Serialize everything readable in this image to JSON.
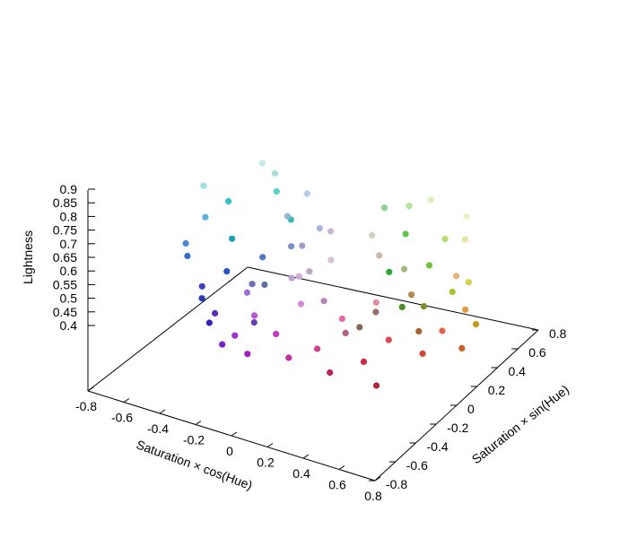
{
  "chart_data": {
    "type": "scatter",
    "projection": "3d",
    "title": "",
    "xlabel": "Saturation × cos(Hue)",
    "ylabel": "Saturation × sin(Hue)",
    "zlabel": "Lightness",
    "xlim": [
      -0.8,
      0.8
    ],
    "ylim": [
      -0.8,
      0.8
    ],
    "zlim": [
      0.4,
      0.9
    ],
    "x_ticks": [
      "-0.8",
      "-0.6",
      "-0.4",
      "-0.2",
      "0",
      "0.2",
      "0.4",
      "0.6",
      "0.8"
    ],
    "y_ticks": [
      "-0.8",
      "-0.6",
      "-0.4",
      "-0.2",
      "0",
      "0.2",
      "0.4",
      "0.6",
      "0.8"
    ],
    "z_ticks": [
      "0.4",
      "0.45",
      "0.5",
      "0.55",
      "0.6",
      "0.65",
      "0.7",
      "0.75",
      "0.8",
      "0.85",
      "0.9"
    ],
    "grid": false,
    "legend": "none",
    "point_color_encoding": "HSL color of each sample",
    "points": [
      {
        "x": -0.7,
        "y": 0.35,
        "z": 0.72,
        "color": "#2ec4c8"
      },
      {
        "x": -0.72,
        "y": 0.15,
        "z": 0.8,
        "color": "#9fdde4"
      },
      {
        "x": -0.6,
        "y": 0.5,
        "z": 0.86,
        "color": "#bfe8ea"
      },
      {
        "x": -0.65,
        "y": 0.3,
        "z": 0.6,
        "color": "#1ea3b5"
      },
      {
        "x": -0.55,
        "y": 0.55,
        "z": 0.76,
        "color": "#56d4c5"
      },
      {
        "x": -0.5,
        "y": 0.6,
        "z": 0.66,
        "color": "#3bb7ad"
      },
      {
        "x": -0.75,
        "y": 0.05,
        "z": 0.55,
        "color": "#2f6fc7"
      },
      {
        "x": -0.7,
        "y": -0.05,
        "z": 0.62,
        "color": "#4a86d6"
      },
      {
        "x": -0.62,
        "y": 0.2,
        "z": 0.5,
        "color": "#2255c0"
      },
      {
        "x": -0.68,
        "y": 0.1,
        "z": 0.7,
        "color": "#5bb0e0"
      },
      {
        "x": -0.58,
        "y": -0.1,
        "z": 0.45,
        "color": "#2a39b5"
      },
      {
        "x": -0.45,
        "y": 0.25,
        "z": 0.58,
        "color": "#4c79c4"
      },
      {
        "x": -0.4,
        "y": 0.4,
        "z": 0.72,
        "color": "#8fb8d8"
      },
      {
        "x": -0.35,
        "y": 0.5,
        "z": 0.8,
        "color": "#b7c8e6"
      },
      {
        "x": -0.5,
        "y": 0.45,
        "z": 0.85,
        "color": "#a9e0da"
      },
      {
        "x": -0.52,
        "y": -0.2,
        "z": 0.52,
        "color": "#3c3fc1"
      },
      {
        "x": -0.42,
        "y": -0.3,
        "z": 0.42,
        "color": "#3b1fb0"
      },
      {
        "x": -0.3,
        "y": -0.45,
        "z": 0.5,
        "color": "#5a2cc2"
      },
      {
        "x": -0.32,
        "y": 0.3,
        "z": 0.64,
        "color": "#7b8fc9"
      },
      {
        "x": -0.25,
        "y": 0.45,
        "z": 0.7,
        "color": "#aab3d8"
      },
      {
        "x": -0.2,
        "y": -0.55,
        "z": 0.42,
        "color": "#7a1fc7"
      },
      {
        "x": -0.1,
        "y": -0.6,
        "z": 0.48,
        "color": "#9a33c9"
      },
      {
        "x": -0.15,
        "y": -0.4,
        "z": 0.6,
        "color": "#9e6fd4"
      },
      {
        "x": -0.05,
        "y": -0.5,
        "z": 0.55,
        "color": "#b55bd0"
      },
      {
        "x": 0.0,
        "y": -0.65,
        "z": 0.44,
        "color": "#a31ec0"
      },
      {
        "x": 0.1,
        "y": -0.55,
        "z": 0.52,
        "color": "#c23bbf"
      },
      {
        "x": 0.15,
        "y": -0.4,
        "z": 0.62,
        "color": "#d785d8"
      },
      {
        "x": 0.05,
        "y": -0.25,
        "z": 0.68,
        "color": "#d2a6dc"
      },
      {
        "x": 0.2,
        "y": -0.6,
        "z": 0.46,
        "color": "#c52a9e"
      },
      {
        "x": 0.3,
        "y": -0.5,
        "z": 0.5,
        "color": "#cf3d8e"
      },
      {
        "x": 0.35,
        "y": -0.35,
        "z": 0.6,
        "color": "#e06aa7"
      },
      {
        "x": 0.4,
        "y": -0.55,
        "z": 0.44,
        "color": "#c41e59"
      },
      {
        "x": 0.5,
        "y": -0.4,
        "z": 0.48,
        "color": "#c92a45"
      },
      {
        "x": 0.55,
        "y": -0.25,
        "z": 0.55,
        "color": "#d8475a"
      },
      {
        "x": 0.6,
        "y": -0.45,
        "z": 0.42,
        "color": "#b8203a"
      },
      {
        "x": 0.45,
        "y": -0.2,
        "z": 0.66,
        "color": "#e58aa0"
      },
      {
        "x": 0.65,
        "y": -0.1,
        "z": 0.5,
        "color": "#cf4a3c"
      },
      {
        "x": 0.7,
        "y": 0.0,
        "z": 0.58,
        "color": "#e0644b"
      },
      {
        "x": 0.72,
        "y": 0.15,
        "z": 0.5,
        "color": "#c9622c"
      },
      {
        "x": 0.68,
        "y": 0.25,
        "z": 0.62,
        "color": "#e09a4a"
      },
      {
        "x": 0.6,
        "y": 0.3,
        "z": 0.72,
        "color": "#e6b27a"
      },
      {
        "x": 0.65,
        "y": 0.4,
        "z": 0.54,
        "color": "#c49a1c"
      },
      {
        "x": 0.55,
        "y": 0.5,
        "z": 0.66,
        "color": "#d8cf4a"
      },
      {
        "x": 0.5,
        "y": 0.55,
        "z": 0.8,
        "color": "#e8e6a6"
      },
      {
        "x": 0.45,
        "y": 0.65,
        "z": 0.86,
        "color": "#eef0c2"
      },
      {
        "x": 0.4,
        "y": 0.6,
        "z": 0.58,
        "color": "#a5c22e"
      },
      {
        "x": 0.3,
        "y": 0.7,
        "z": 0.74,
        "color": "#b9dc6e"
      },
      {
        "x": 0.25,
        "y": 0.65,
        "z": 0.88,
        "color": "#d8efb8"
      },
      {
        "x": 0.2,
        "y": 0.72,
        "z": 0.62,
        "color": "#73c23d"
      },
      {
        "x": 0.1,
        "y": 0.7,
        "z": 0.82,
        "color": "#b4e39e"
      },
      {
        "x": 0.05,
        "y": 0.75,
        "z": 0.7,
        "color": "#5dc44c"
      },
      {
        "x": 0.0,
        "y": 0.68,
        "z": 0.56,
        "color": "#2fa531"
      },
      {
        "x": -0.05,
        "y": 0.72,
        "z": 0.78,
        "color": "#8ad48a"
      },
      {
        "x": 0.15,
        "y": 0.55,
        "z": 0.48,
        "color": "#4e8f2a"
      },
      {
        "x": 0.3,
        "y": 0.5,
        "z": 0.52,
        "color": "#7f8f2c"
      },
      {
        "x": 0.25,
        "y": 0.4,
        "z": 0.66,
        "color": "#a8b87a"
      },
      {
        "x": 0.35,
        "y": 0.3,
        "z": 0.6,
        "color": "#b28a4c"
      },
      {
        "x": 0.45,
        "y": 0.2,
        "z": 0.5,
        "color": "#a2602d"
      },
      {
        "x": 0.2,
        "y": 0.25,
        "z": 0.72,
        "color": "#c9b9a8"
      },
      {
        "x": 0.1,
        "y": 0.35,
        "z": 0.76,
        "color": "#d6d0bf"
      },
      {
        "x": -0.1,
        "y": 0.3,
        "z": 0.74,
        "color": "#c7b8d6"
      },
      {
        "x": -0.2,
        "y": 0.2,
        "z": 0.68,
        "color": "#a69bc6"
      },
      {
        "x": -0.1,
        "y": 0.1,
        "z": 0.62,
        "color": "#b7a6c4"
      },
      {
        "x": 0.05,
        "y": 0.05,
        "z": 0.7,
        "color": "#d4c1d6"
      },
      {
        "x": 0.1,
        "y": -0.1,
        "z": 0.58,
        "color": "#b686b8"
      },
      {
        "x": -0.05,
        "y": -0.15,
        "z": 0.64,
        "color": "#c0a0d2"
      },
      {
        "x": 0.25,
        "y": -0.15,
        "z": 0.5,
        "color": "#b35f84"
      },
      {
        "x": 0.3,
        "y": 0.05,
        "z": 0.56,
        "color": "#9e6a6a"
      },
      {
        "x": 0.15,
        "y": 0.15,
        "z": 0.46,
        "color": "#7e6a5a"
      },
      {
        "x": -0.3,
        "y": -0.1,
        "z": 0.56,
        "color": "#6d6fb8"
      },
      {
        "x": -0.35,
        "y": 0.1,
        "z": 0.52,
        "color": "#5a72a8"
      },
      {
        "x": -0.2,
        "y": -0.25,
        "z": 0.46,
        "color": "#6a3eaa"
      }
    ]
  }
}
